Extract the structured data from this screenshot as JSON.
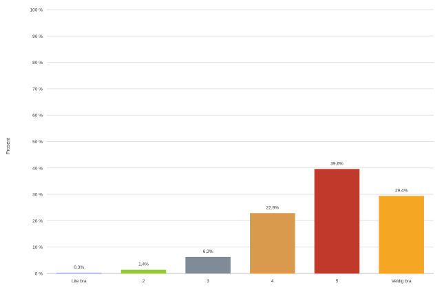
{
  "chart_data": {
    "type": "bar",
    "ylabel": "Prosent",
    "xlabel": "",
    "title": "",
    "categories": [
      "Lite bra",
      "2",
      "3",
      "4",
      "5",
      "Veldig bra"
    ],
    "values": [
      0.3,
      1.4,
      6.3,
      22.9,
      39.6,
      29.4
    ],
    "data_labels": [
      "0,3%",
      "1,4%",
      "6,3%",
      "22,9%",
      "39,6%",
      "29,4%"
    ],
    "bar_colors": [
      "#8faadc",
      "#92c83e",
      "#7f8c97",
      "#d99a4e",
      "#c0392b",
      "#f5a623"
    ],
    "ylim": [
      0,
      100
    ],
    "yticks": [
      0,
      10,
      20,
      30,
      40,
      50,
      60,
      70,
      80,
      90,
      100
    ],
    "ytick_labels": [
      "0 %",
      "10 %",
      "20 %",
      "30 %",
      "40 %",
      "50 %",
      "60 %",
      "70 %",
      "80 %",
      "90 %",
      "100 %"
    ],
    "grid": true,
    "legend": "none"
  }
}
